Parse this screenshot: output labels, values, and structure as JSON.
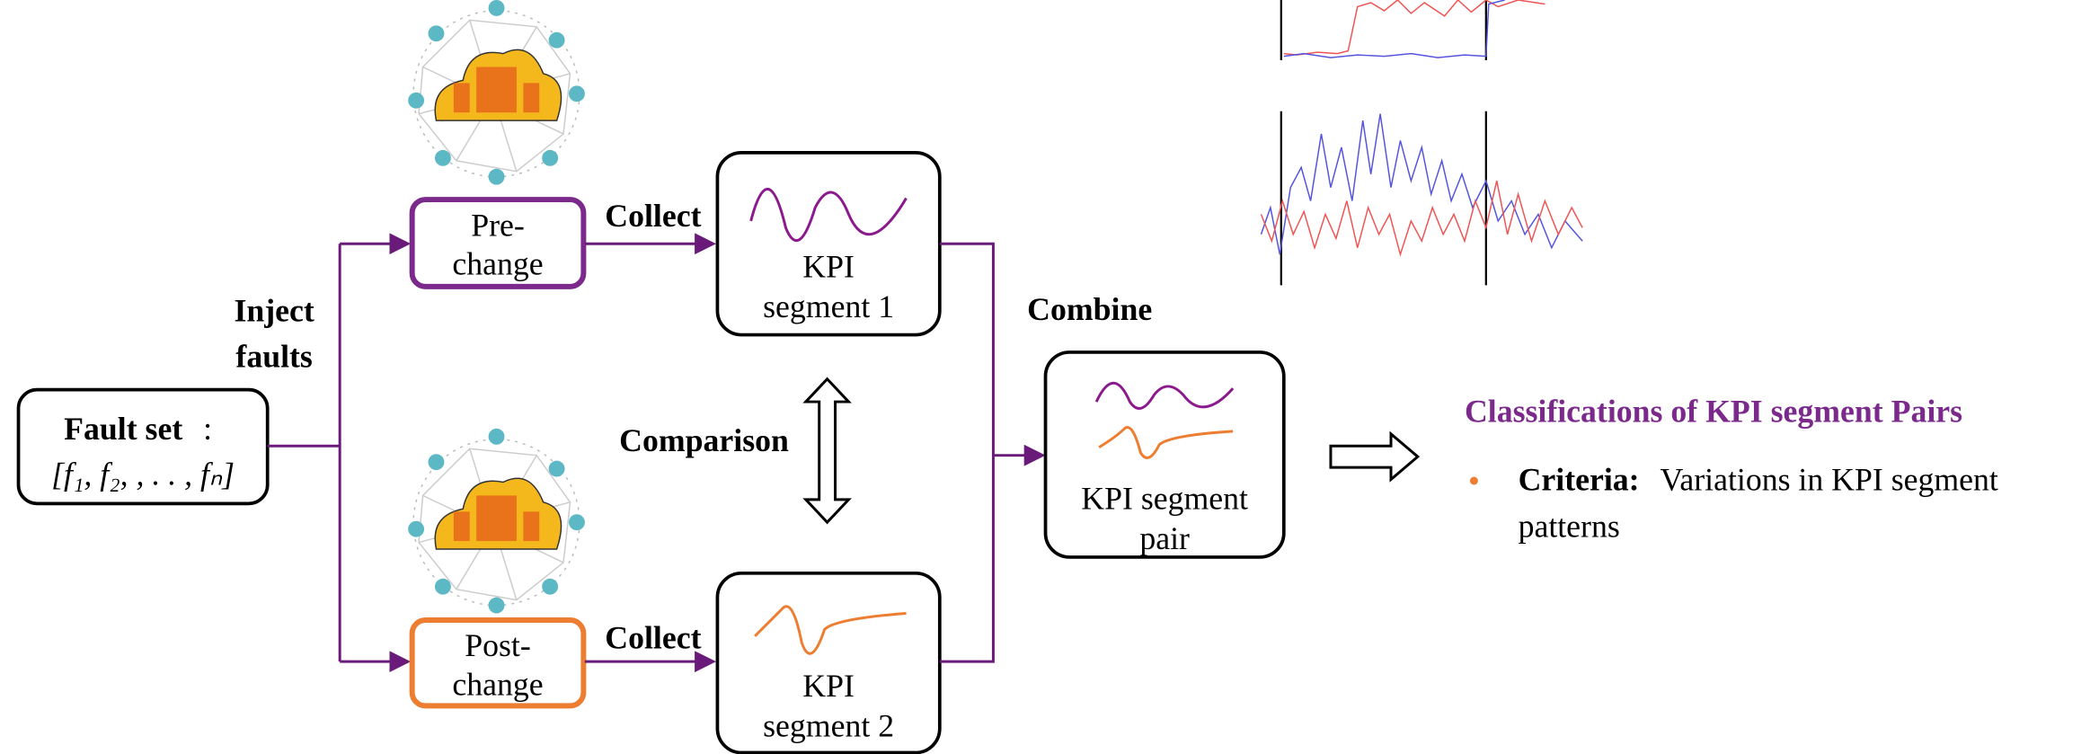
{
  "fault_set": {
    "label": "Fault set",
    "colon": ":",
    "formula": "[f₁, f₂, , . . , fₙ]"
  },
  "inject": [
    "Inject",
    "faults"
  ],
  "pre_change": {
    "lines": [
      "Pre-",
      "change"
    ],
    "collect": "Collect"
  },
  "post_change": {
    "lines": [
      "Post-",
      "change"
    ],
    "collect": "Collect"
  },
  "segment_1": [
    "KPI",
    "segment 1"
  ],
  "segment_2": [
    "KPI",
    "segment 2"
  ],
  "comparison": "Comparison",
  "combine": "Combine",
  "pair": [
    "KPI segment",
    "pair"
  ],
  "classification": {
    "title": "Classifications of KPI segment Pairs",
    "criteria_label": "Criteria:",
    "criteria_text": [
      "Variations in KPI segment",
      "patterns"
    ]
  }
}
